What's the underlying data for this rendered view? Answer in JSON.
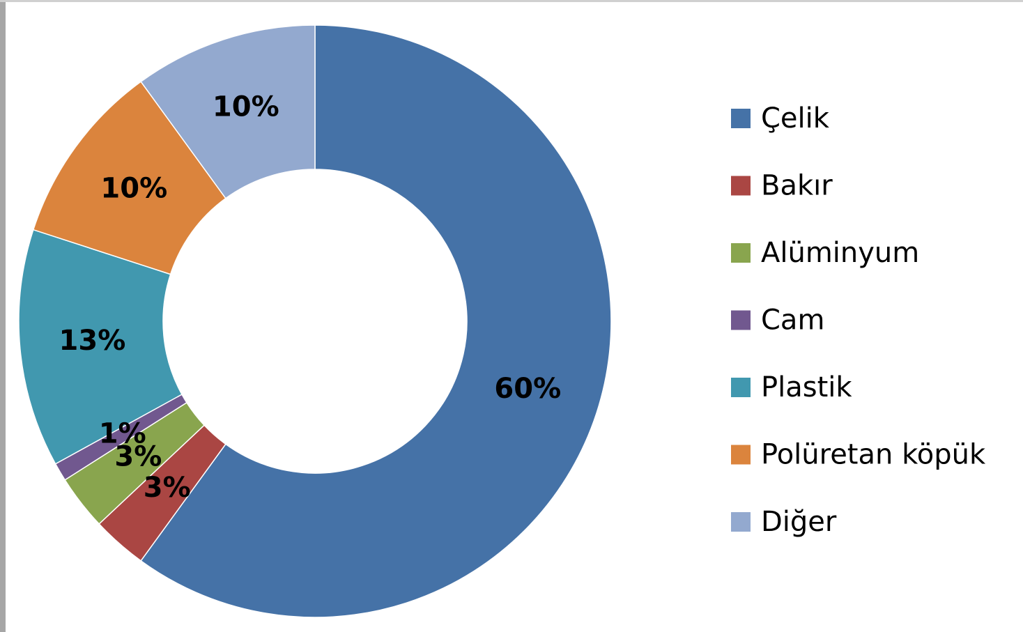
{
  "chart_data": {
    "type": "donut",
    "categories": [
      "Çelik",
      "Bakır",
      "Alüminyum",
      "Cam",
      "Plastik",
      "Polüretan köpük",
      "Diğer"
    ],
    "values": [
      60,
      3,
      3,
      1,
      13,
      10,
      10
    ],
    "value_labels": [
      "60%",
      "3%",
      "3%",
      "1%",
      "13%",
      "10%",
      "10%"
    ],
    "colors": [
      "#4572a7",
      "#aa4643",
      "#89a54e",
      "#71588f",
      "#4198af",
      "#db843d",
      "#93a9cf"
    ],
    "legend": "right"
  }
}
